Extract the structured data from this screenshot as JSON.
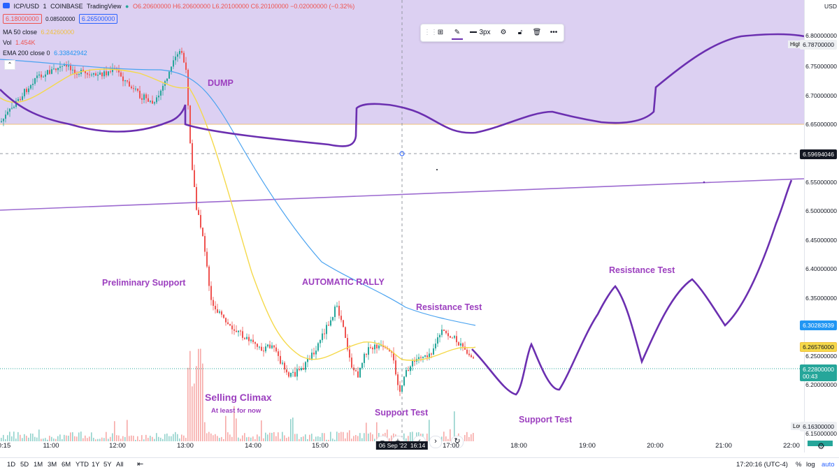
{
  "header": {
    "symbol": "ICP/USD",
    "interval": "1",
    "exchange": "COINBASE",
    "provider": "TradingView",
    "ohlc": "O6.20600000 H6.20600000 L6.20100000 C6.20100000 −0.02000000 (−0.32%)",
    "bid": "6.18000000",
    "spread": "0.08500000",
    "ask": "6.26500000"
  },
  "indicators": {
    "ma_label": "MA 50 close",
    "ma_value": "6.24260000",
    "vol_label": "Vol",
    "vol_value": "1.454K",
    "ema_label": "EMA 200 close 0",
    "ema_value": "6.33842942"
  },
  "toolbar": {
    "width_label": "3px"
  },
  "annotations": {
    "dump": "DUMP",
    "preliminary_support": "Preliminary Support",
    "automatic_rally": "AUTOMATIC RALLY",
    "resistance_test_1": "Resistance Test",
    "resistance_test_2": "Resistance Test",
    "selling_climax": "Selling Climax",
    "at_least": "At least for now",
    "support_test_1": "Support Test",
    "support_test_2": "Support Test"
  },
  "price_axis": {
    "currency": "USD",
    "ticks": [
      "6.80000000",
      "6.75000000",
      "6.70000000",
      "6.65000000",
      "6.55000000",
      "6.50000000",
      "6.45000000",
      "6.40000000",
      "6.35000000",
      "6.25000000",
      "6.20000000",
      "6.15000000"
    ],
    "high_label": "High",
    "high_value": "6.78700000",
    "low_label": "Low",
    "low_value": "6.16300000",
    "crosshair_price": "6.59694046",
    "ema_price": "6.30283939",
    "ma_price": "6.26576000",
    "last_price": "6.22800000",
    "countdown": "00:43"
  },
  "time_axis": {
    "labels": [
      "0:15",
      "11:00",
      "12:00",
      "13:00",
      "14:00",
      "15:00",
      "17:00",
      "18:00",
      "19:00",
      "20:00",
      "21:00",
      "22:00"
    ],
    "crosshair_time": "06 Sep '22  16:14"
  },
  "bottom_bar": {
    "ranges": [
      "1D",
      "5D",
      "1M",
      "3M",
      "6M",
      "YTD",
      "1Y",
      "5Y",
      "All"
    ],
    "clock": "17:20:16 (UTC-4)",
    "percent": "%",
    "log": "log",
    "auto": "auto"
  },
  "colors": {
    "zone_fill": "#d9ccf1",
    "drawing": "#6b2fb0",
    "ma": "#f5d94a",
    "ema": "#4aa3f0",
    "up": "#26a69a",
    "down": "#ef5350",
    "annotation": "#9c3fbf"
  }
}
